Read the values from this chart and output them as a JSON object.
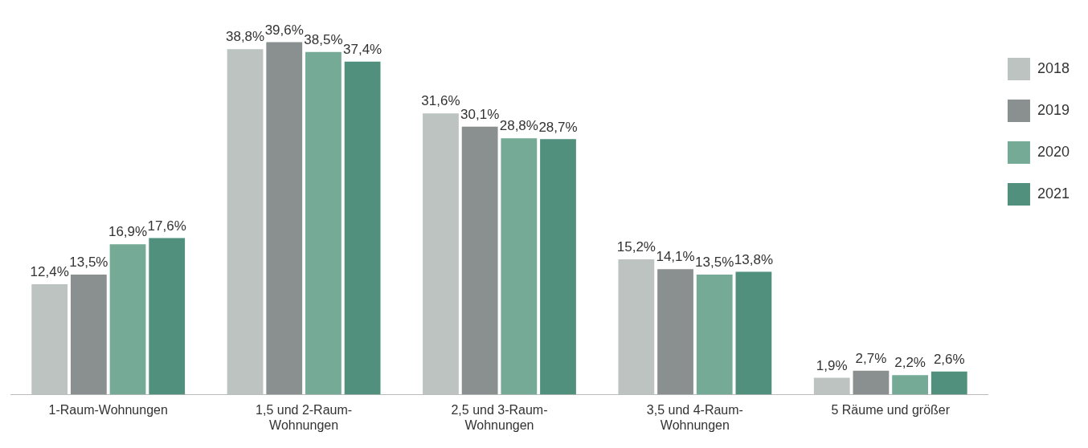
{
  "chart_data": {
    "type": "bar",
    "categories": [
      "1-Raum-Wohnungen",
      "1,5 und 2-Raum-Wohnungen",
      "2,5 und 3-Raum-Wohnungen",
      "3,5 und 4-Raum-Wohnungen",
      "5 Räume und größer"
    ],
    "series": [
      {
        "name": "2018",
        "color": "#bdc3c0",
        "values": [
          12.4,
          38.8,
          31.6,
          15.2,
          1.9
        ],
        "value_labels": [
          "12,4%",
          "38,8%",
          "31,6%",
          "15,2%",
          "1,9%"
        ]
      },
      {
        "name": "2019",
        "color": "#8a908f",
        "values": [
          13.5,
          39.6,
          30.1,
          14.1,
          2.7
        ],
        "value_labels": [
          "13,5%",
          "39,6%",
          "30,1%",
          "14,1%",
          "2,7%"
        ]
      },
      {
        "name": "2020",
        "color": "#74aa96",
        "values": [
          16.9,
          38.5,
          28.8,
          13.5,
          2.2
        ],
        "value_labels": [
          "16,9%",
          "38,5%",
          "28,8%",
          "13,5%",
          "2,2%"
        ]
      },
      {
        "name": "2021",
        "color": "#52907e",
        "values": [
          17.6,
          37.4,
          28.7,
          13.8,
          2.6
        ],
        "value_labels": [
          "17,6%",
          "37,4%",
          "28,7%",
          "13,8%",
          "2,6%"
        ]
      }
    ],
    "legend": "top right",
    "grid": false
  }
}
